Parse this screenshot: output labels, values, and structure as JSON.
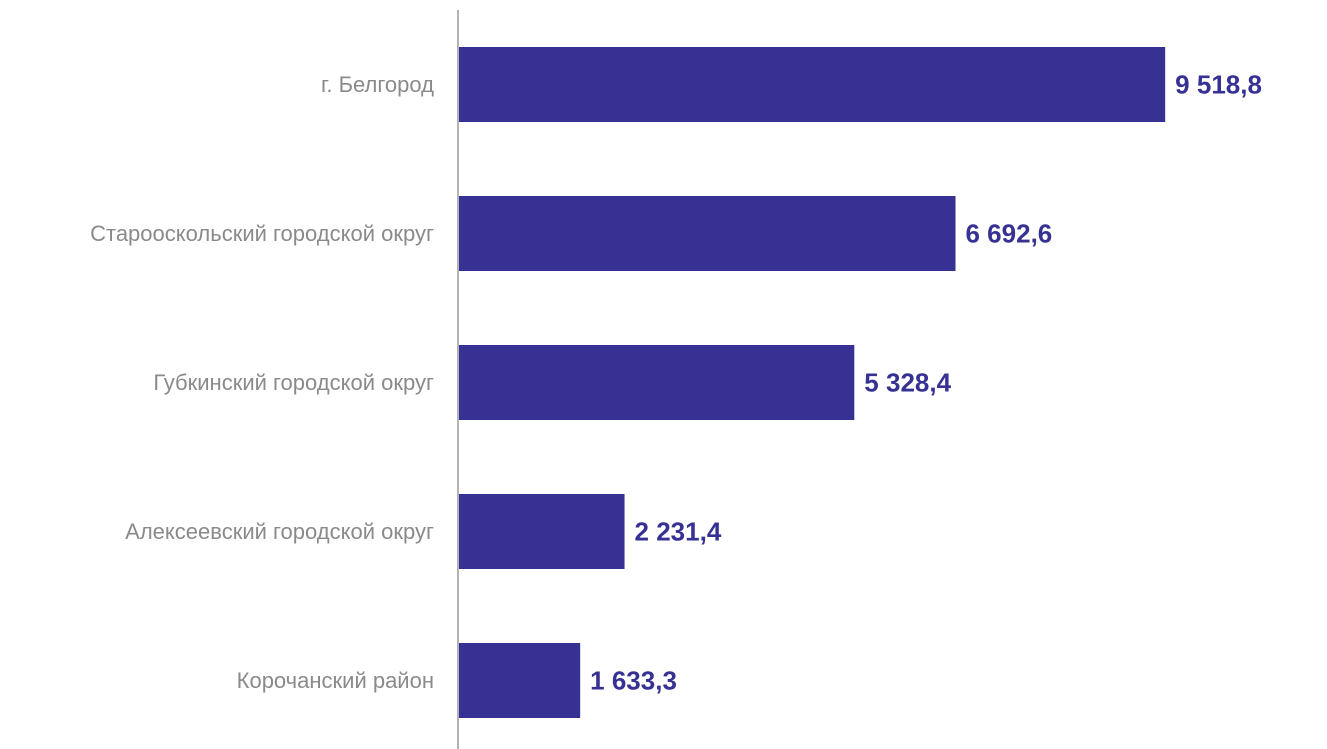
{
  "colors": {
    "bar": "#363192",
    "value_label": "#363192",
    "category_label": "#8a8a8a",
    "axis": "#b3b3b3"
  },
  "chart_data": {
    "type": "bar",
    "orientation": "horizontal",
    "title": "",
    "xlabel": "",
    "ylabel": "",
    "grid": false,
    "legend": "none",
    "categories": [
      "г. Белгород",
      "Старооскольский городской округ",
      "Губкинский городской округ",
      "Алексеевский городской округ",
      "Корочанский район"
    ],
    "values": [
      9518.8,
      6692.6,
      5328.4,
      2231.4,
      1633.3
    ],
    "value_labels": [
      "9 518,8",
      "6 692,6",
      "5 328,4",
      "2 231,4",
      "1 633,3"
    ],
    "xlim": [
      0,
      11700
    ]
  }
}
